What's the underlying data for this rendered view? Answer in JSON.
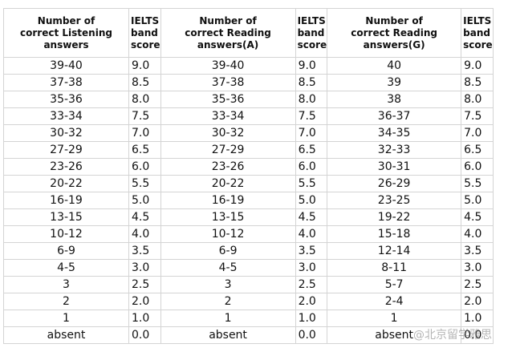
{
  "table": {
    "header": [
      [
        "Number of",
        "correct Listening answers"
      ],
      [
        "IELTS",
        "band",
        "score"
      ],
      [
        "Number of",
        "correct Reading answers(A)"
      ],
      [
        "IELTS",
        "band",
        "score"
      ],
      [
        "Number of",
        "correct Reading answers(G)"
      ],
      [
        "IELTS",
        "band",
        "score"
      ]
    ],
    "rows": [
      [
        "39-40",
        "9.0",
        "39-40",
        "9.0",
        "40",
        "9.0"
      ],
      [
        "37-38",
        "8.5",
        "37-38",
        "8.5",
        "39",
        "8.5"
      ],
      [
        "35-36",
        "8.0",
        "35-36",
        "8.0",
        "38",
        "8.0"
      ],
      [
        "33-34",
        "7.5",
        "33-34",
        "7.5",
        "36-37",
        "7.5"
      ],
      [
        "30-32",
        "7.0",
        "30-32",
        "7.0",
        "34-35",
        "7.0"
      ],
      [
        "27-29",
        "6.5",
        "27-29",
        "6.5",
        "32-33",
        "6.5"
      ],
      [
        "23-26",
        "6.0",
        "23-26",
        "6.0",
        "30-31",
        "6.0"
      ],
      [
        "20-22",
        "5.5",
        "20-22",
        "5.5",
        "26-29",
        "5.5"
      ],
      [
        "16-19",
        "5.0",
        "16-19",
        "5.0",
        "23-25",
        "5.0"
      ],
      [
        "13-15",
        "4.5",
        "13-15",
        "4.5",
        "19-22",
        "4.5"
      ],
      [
        "10-12",
        "4.0",
        "10-12",
        "4.0",
        "15-18",
        "4.0"
      ],
      [
        "6-9",
        "3.5",
        "6-9",
        "3.5",
        "12-14",
        "3.5"
      ],
      [
        "4-5",
        "3.0",
        "4-5",
        "3.0",
        "8-11",
        "3.0"
      ],
      [
        "3",
        "2.5",
        "3",
        "2.5",
        "5-7",
        "2.5"
      ],
      [
        "2",
        "2.0",
        "2",
        "2.0",
        "2-4",
        "2.0"
      ],
      [
        "1",
        "1.0",
        "1",
        "1.0",
        "1",
        "1.0"
      ],
      [
        "absent",
        "0.0",
        "absent",
        "0.0",
        "absent",
        "0.0"
      ]
    ]
  },
  "watermark": "@北京留学雅思"
}
